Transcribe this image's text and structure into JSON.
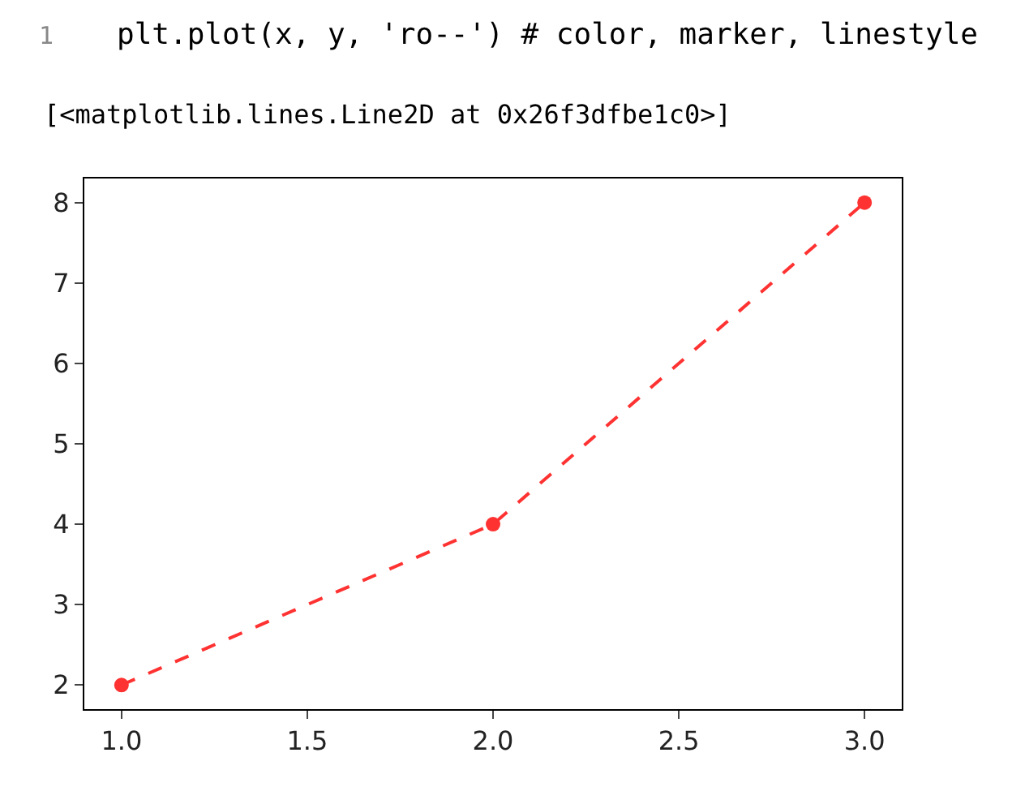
{
  "chart_data": {
    "type": "line",
    "annotations": [
      "1",
      "plt.plot(x, y, 'ro--') # color, marker, linestyle",
      "[<matplotlib.lines.Line2D at 0x26f3dfbe1c0>]"
    ],
    "x": [
      1,
      2,
      3
    ],
    "series": [
      {
        "color": "#ff0000",
        "values": [
          2,
          4,
          8
        ]
      }
    ],
    "marker": "circle",
    "line_style": "dashed",
    "grid": false,
    "xlim": [
      0.9,
      3.1
    ],
    "xticks": [
      {
        "value": 1,
        "label": "1.0"
      },
      {
        "value": 1.5,
        "label": "1.5"
      },
      {
        "value": 2,
        "label": "2.0"
      },
      {
        "value": 2.5,
        "label": "2.5"
      },
      {
        "value": 3,
        "label": "3.0"
      }
    ],
    "ylim": [
      1.7,
      8.3
    ],
    "yticks": [
      2,
      3,
      4,
      5,
      6,
      7,
      8
    ]
  }
}
